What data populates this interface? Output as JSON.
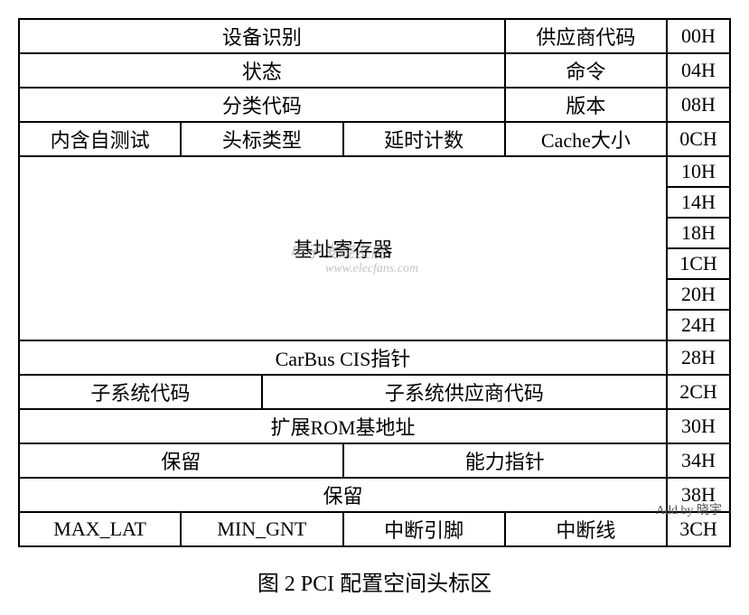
{
  "table": {
    "rows": [
      {
        "offset": "00H",
        "cells": [
          {
            "text": "设备识别",
            "span": 6
          },
          {
            "text": "供应商代码",
            "span": 2
          }
        ]
      },
      {
        "offset": "04H",
        "cells": [
          {
            "text": "状态",
            "span": 6
          },
          {
            "text": "命令",
            "span": 2
          }
        ]
      },
      {
        "offset": "08H",
        "cells": [
          {
            "text": "分类代码",
            "span": 6
          },
          {
            "text": "版本",
            "span": 2
          }
        ]
      },
      {
        "offset": "0CH",
        "cells": [
          {
            "text": "内含自测试",
            "span": 2
          },
          {
            "text": "头标类型",
            "span": 2
          },
          {
            "text": "延时计数",
            "span": 2
          },
          {
            "text": "Cache大小",
            "span": 2
          }
        ]
      }
    ],
    "base_addr": {
      "label": "基址寄存器",
      "offsets": [
        "10H",
        "14H",
        "18H",
        "1CH",
        "20H",
        "24H"
      ]
    },
    "rows2": [
      {
        "offset": "28H",
        "cells": [
          {
            "text": "CarBus CIS指针",
            "span": 8
          }
        ]
      },
      {
        "offset": "2CH",
        "cells": [
          {
            "text": "子系统代码",
            "span": 3
          },
          {
            "text": "子系统供应商代码",
            "span": 5
          }
        ]
      },
      {
        "offset": "30H",
        "cells": [
          {
            "text": "扩展ROM基地址",
            "span": 8
          }
        ]
      },
      {
        "offset": "34H",
        "cells": [
          {
            "text": "保留",
            "span": 4
          },
          {
            "text": "能力指针",
            "span": 4
          }
        ]
      },
      {
        "offset": "38H",
        "cells": [
          {
            "text": "保留",
            "span": 8
          }
        ]
      },
      {
        "offset": "3CH",
        "cells": [
          {
            "text": "MAX_LAT",
            "span": 2
          },
          {
            "text": "MIN_GNT",
            "span": 2
          },
          {
            "text": "中断引脚",
            "span": 2
          },
          {
            "text": "中断线",
            "span": 2
          }
        ]
      }
    ]
  },
  "caption": "图 2  PCI 配置空间头标区",
  "watermark1": "电子发烧友网",
  "watermark2": "www.elecfans.com",
  "corner": "Add by 晓宇"
}
